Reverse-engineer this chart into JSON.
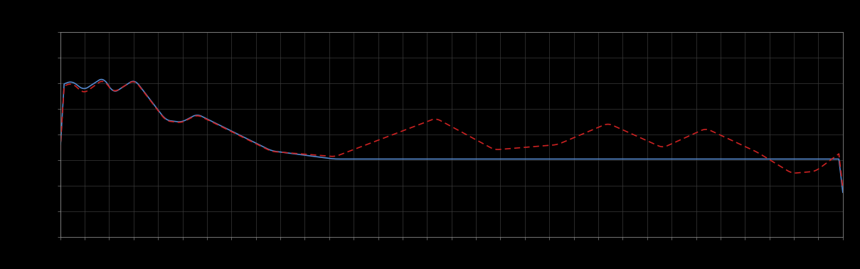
{
  "background_color": "#000000",
  "axes_background": "#000000",
  "grid_color": "#3a3a3a",
  "line1_color": "#5588cc",
  "line2_color": "#cc2222",
  "line_width": 1.2,
  "figsize": [
    12.09,
    3.78
  ],
  "dpi": 100,
  "spine_color": "#888888",
  "tick_color": "#888888",
  "n_xgrid": 32,
  "n_ygrid": 8
}
